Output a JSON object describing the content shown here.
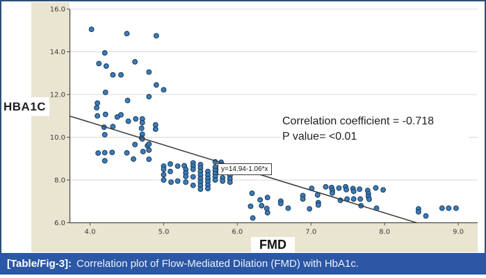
{
  "figure": {
    "caption_label": "[Table/Fig-3]:",
    "caption_text": "Correlation plot of Flow-Mediated Dilation (FMD) with HbA1c."
  },
  "colors": {
    "frame_border": "#2d4f76",
    "caption_bar": "#2b57a4",
    "caption_text": "#ffffff",
    "chart_margin_beige": "#eae5d1",
    "plot_background": "#ffffff",
    "gridline": "#d8d8d8",
    "axis": "#4d4d4d",
    "tick_label": "#3a3a3a",
    "point_fill": "#3d7db6",
    "point_stroke": "#1c3f63",
    "trend_line": "#3f3f3f"
  },
  "chart_data": {
    "type": "scatter",
    "title": "",
    "xlabel": "FMD",
    "ylabel": "HBA1C",
    "xlim": [
      3.72,
      9.26
    ],
    "ylim": [
      6.0,
      16.0
    ],
    "x_ticks": [
      "4.0",
      "5.0",
      "6.0",
      "7.0",
      "8.0",
      "9.0"
    ],
    "y_ticks": [
      "6.0",
      "8.0",
      "10.0",
      "12.0",
      "14.0",
      "16.0"
    ],
    "grid": true,
    "annotations": [
      "Correlation coefficient = -0.718",
      "P value= <0.01"
    ],
    "trendline": {
      "label": "y=14.94-1.06*x",
      "intercept": 14.94,
      "slope": -1.06
    },
    "points": [
      [
        4.02,
        15.05
      ],
      [
        4.5,
        14.85
      ],
      [
        4.9,
        14.75
      ],
      [
        4.2,
        13.95
      ],
      [
        4.12,
        13.45
      ],
      [
        4.22,
        13.33
      ],
      [
        4.61,
        13.53
      ],
      [
        4.31,
        12.92
      ],
      [
        4.42,
        12.92
      ],
      [
        4.8,
        13.05
      ],
      [
        4.9,
        12.45
      ],
      [
        5.0,
        12.22
      ],
      [
        4.21,
        12.1
      ],
      [
        4.8,
        11.9
      ],
      [
        4.1,
        11.6
      ],
      [
        4.51,
        11.72
      ],
      [
        4.09,
        11.38
      ],
      [
        4.1,
        11.0
      ],
      [
        4.21,
        11.07
      ],
      [
        4.37,
        10.95
      ],
      [
        4.42,
        11.05
      ],
      [
        4.52,
        10.75
      ],
      [
        4.62,
        10.86
      ],
      [
        4.71,
        10.86
      ],
      [
        4.71,
        10.68
      ],
      [
        4.19,
        10.47
      ],
      [
        4.31,
        10.5
      ],
      [
        4.7,
        10.42
      ],
      [
        4.89,
        10.58
      ],
      [
        4.89,
        10.38
      ],
      [
        4.2,
        10.12
      ],
      [
        4.71,
        10.14
      ],
      [
        4.7,
        9.97
      ],
      [
        4.61,
        9.66
      ],
      [
        4.78,
        9.6
      ],
      [
        4.71,
        9.92
      ],
      [
        4.8,
        9.68
      ],
      [
        4.8,
        9.4
      ],
      [
        4.11,
        9.26
      ],
      [
        4.2,
        9.28
      ],
      [
        4.3,
        9.29
      ],
      [
        4.5,
        9.27
      ],
      [
        4.72,
        9.33
      ],
      [
        4.2,
        8.9
      ],
      [
        4.59,
        8.98
      ],
      [
        4.8,
        8.97
      ],
      [
        5.0,
        8.65
      ],
      [
        5.0,
        8.5
      ],
      [
        5.0,
        8.25
      ],
      [
        5.0,
        8.0
      ],
      [
        5.09,
        8.75
      ],
      [
        5.09,
        8.4
      ],
      [
        5.1,
        7.9
      ],
      [
        5.19,
        8.65
      ],
      [
        5.19,
        7.95
      ],
      [
        5.28,
        8.67
      ],
      [
        5.3,
        8.5
      ],
      [
        5.3,
        8.33
      ],
      [
        5.3,
        8.17
      ],
      [
        5.3,
        7.9
      ],
      [
        5.4,
        8.8
      ],
      [
        5.4,
        8.65
      ],
      [
        5.4,
        8.5
      ],
      [
        5.4,
        8.15
      ],
      [
        5.4,
        7.75
      ],
      [
        5.5,
        8.72
      ],
      [
        5.5,
        8.56
      ],
      [
        5.5,
        8.4
      ],
      [
        5.5,
        8.23
      ],
      [
        5.5,
        8.07
      ],
      [
        5.5,
        7.9
      ],
      [
        5.5,
        7.74
      ],
      [
        5.5,
        7.57
      ],
      [
        5.6,
        8.4
      ],
      [
        5.6,
        8.23
      ],
      [
        5.6,
        8.07
      ],
      [
        5.6,
        7.92
      ],
      [
        5.6,
        7.76
      ],
      [
        5.6,
        7.6
      ],
      [
        5.7,
        8.85
      ],
      [
        5.7,
        8.6
      ],
      [
        5.7,
        8.45
      ],
      [
        5.7,
        8.3
      ],
      [
        5.7,
        8.15
      ],
      [
        5.7,
        8.0
      ],
      [
        5.78,
        8.83
      ],
      [
        5.78,
        8.68
      ],
      [
        5.8,
        8.1
      ],
      [
        5.8,
        7.95
      ],
      [
        5.9,
        8.2
      ],
      [
        5.9,
        8.05
      ],
      [
        5.9,
        7.9
      ],
      [
        6.2,
        7.38
      ],
      [
        6.18,
        6.77
      ],
      [
        6.21,
        6.22
      ],
      [
        6.31,
        7.07
      ],
      [
        6.33,
        6.8
      ],
      [
        6.41,
        7.18
      ],
      [
        6.41,
        6.47
      ],
      [
        6.4,
        6.67
      ],
      [
        6.59,
        7.01
      ],
      [
        6.59,
        6.9
      ],
      [
        6.69,
        6.68
      ],
      [
        6.89,
        7.27
      ],
      [
        6.89,
        7.11
      ],
      [
        6.98,
        6.65
      ],
      [
        7.01,
        7.61
      ],
      [
        7.09,
        7.3
      ],
      [
        7.1,
        6.94
      ],
      [
        7.1,
        6.83
      ],
      [
        7.2,
        7.68
      ],
      [
        7.28,
        7.65
      ],
      [
        7.29,
        7.52
      ],
      [
        7.29,
        7.39
      ],
      [
        7.38,
        7.62
      ],
      [
        7.4,
        7.05
      ],
      [
        7.47,
        7.68
      ],
      [
        7.48,
        7.55
      ],
      [
        7.49,
        7.11
      ],
      [
        7.57,
        7.6
      ],
      [
        7.58,
        7.47
      ],
      [
        7.58,
        7.11
      ],
      [
        7.66,
        7.57
      ],
      [
        7.67,
        7.11
      ],
      [
        7.68,
        6.8
      ],
      [
        7.77,
        7.51
      ],
      [
        7.78,
        7.35
      ],
      [
        7.78,
        7.22
      ],
      [
        7.79,
        7.1
      ],
      [
        7.88,
        7.63
      ],
      [
        7.89,
        6.68
      ],
      [
        7.98,
        7.54
      ],
      [
        8.46,
        6.65
      ],
      [
        8.46,
        6.51
      ],
      [
        8.56,
        6.32
      ],
      [
        8.78,
        6.68
      ],
      [
        8.87,
        6.68
      ],
      [
        8.97,
        6.68
      ]
    ]
  }
}
